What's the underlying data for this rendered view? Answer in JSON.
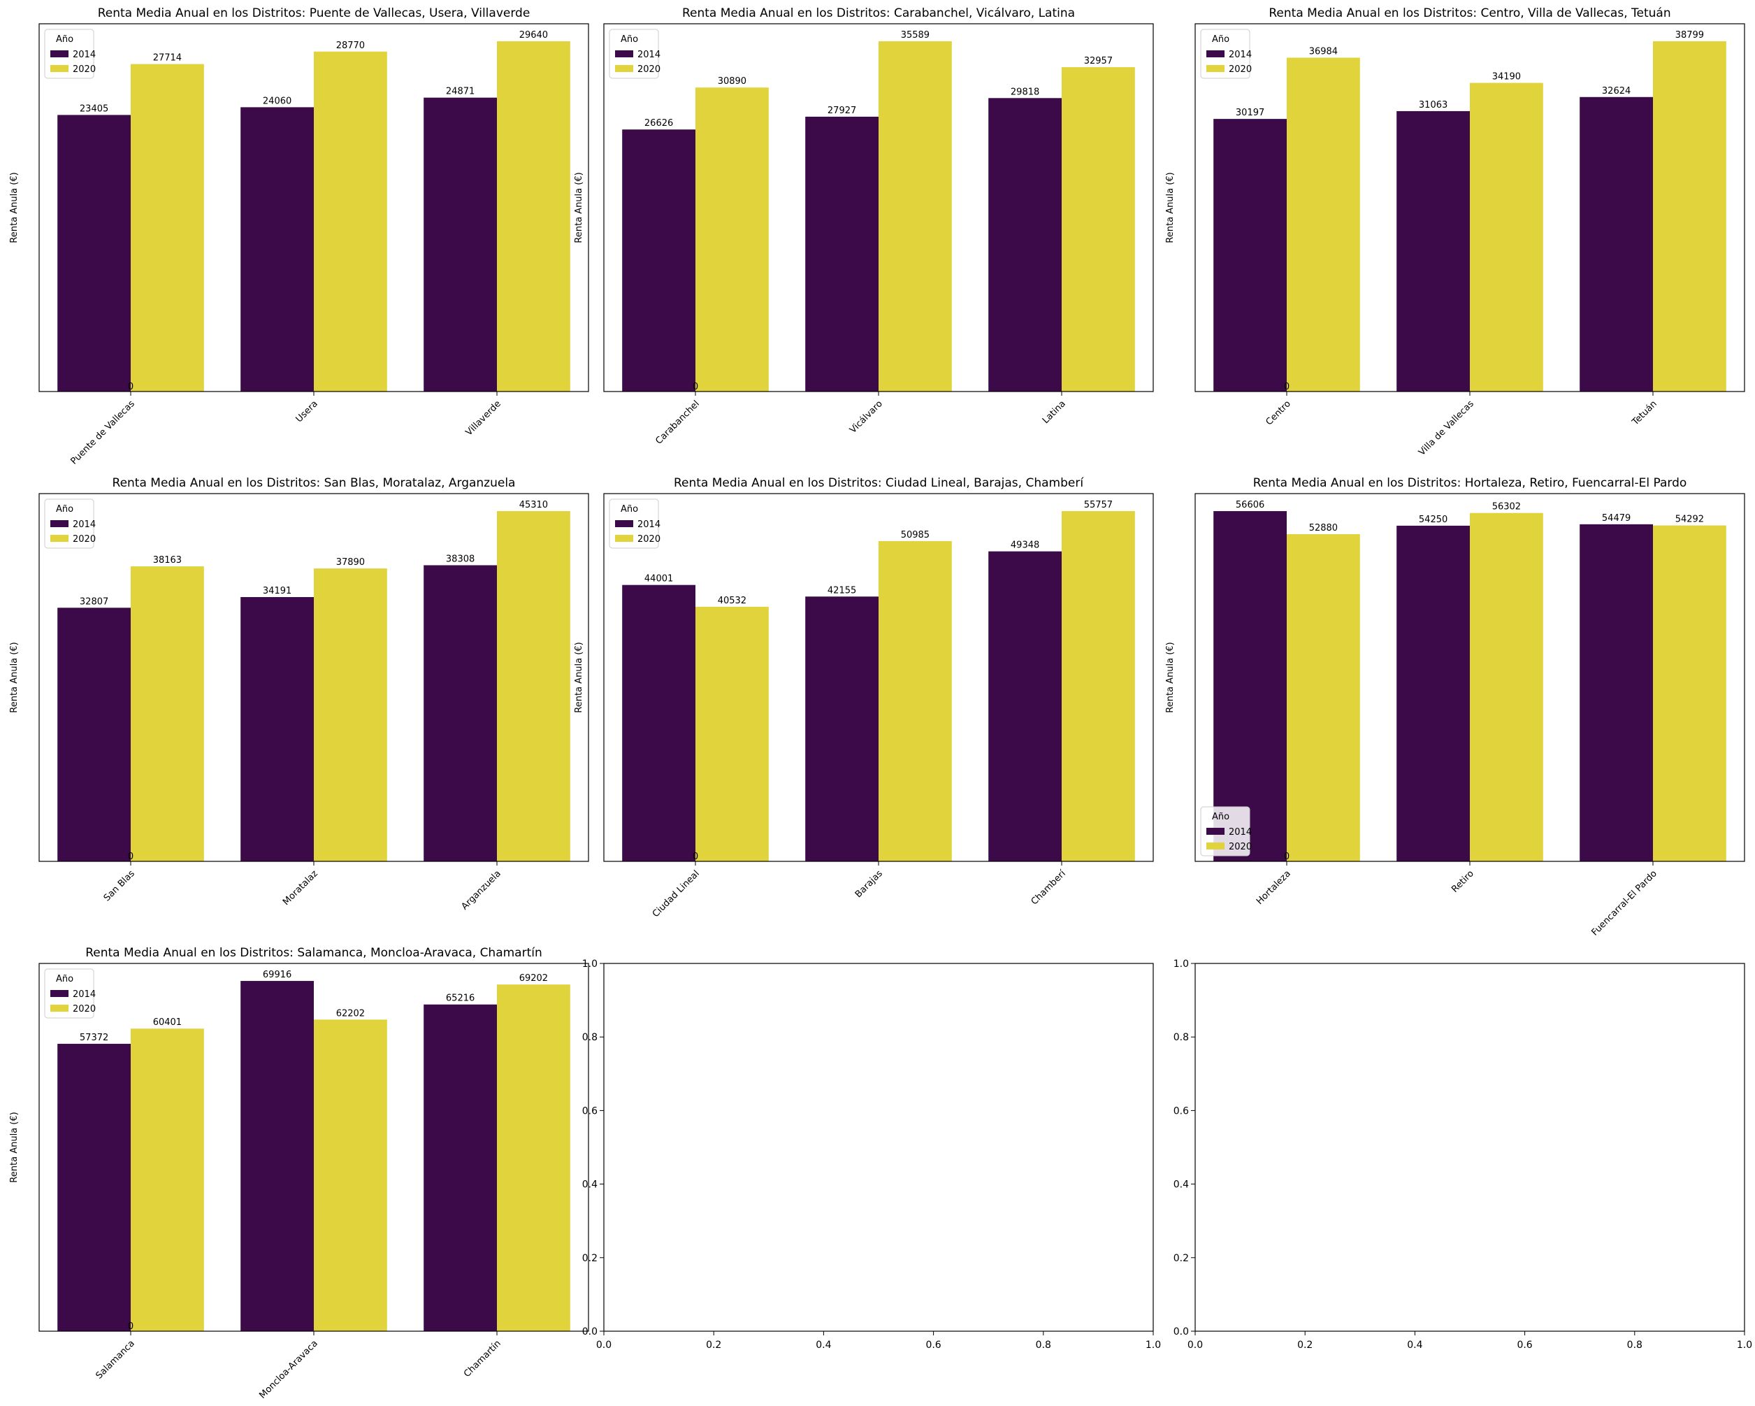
{
  "colors": {
    "y2014": "#3c0a49",
    "y2020": "#e1d33c",
    "axis": "#000000",
    "legendEdge": "#cccccc"
  },
  "chart_data": [
    {
      "type": "bar",
      "title": "Renta Media Anual en los Distritos: Puente de Vallecas, Usera, Villaverde",
      "ylabel": "Renta Anula (€)",
      "legend": {
        "title": "Año",
        "position": "upper-left"
      },
      "categories": [
        "Puente de Vallecas",
        "Usera",
        "Villaverde"
      ],
      "series": [
        {
          "name": "2014",
          "values": [
            23405,
            24060,
            24871
          ],
          "labels": [
            "23405",
            "24060",
            "24871"
          ]
        },
        {
          "name": "2020",
          "values": [
            27714,
            28770,
            29640
          ],
          "labels": [
            "27714",
            "28770",
            "29640"
          ]
        }
      ],
      "zero_label": "0",
      "ylim": [
        0,
        29640
      ]
    },
    {
      "type": "bar",
      "title": "Renta Media Anual en los Distritos: Carabanchel, Vicálvaro, Latina",
      "ylabel": "Renta Anula (€)",
      "legend": {
        "title": "Año",
        "position": "upper-left"
      },
      "categories": [
        "Carabanchel",
        "Vicálvaro",
        "Latina"
      ],
      "series": [
        {
          "name": "2014",
          "values": [
            26626,
            27927,
            29818
          ],
          "labels": [
            "26626",
            "27927",
            "29818"
          ]
        },
        {
          "name": "2020",
          "values": [
            30890,
            35589,
            32957
          ],
          "labels": [
            "30890",
            "35589",
            "32957"
          ]
        }
      ],
      "zero_label": "0",
      "ylim": [
        0,
        35589
      ]
    },
    {
      "type": "bar",
      "title": "Renta Media Anual en los Distritos: Centro, Villa de Vallecas, Tetuán",
      "ylabel": "Renta Anula (€)",
      "legend": {
        "title": "Año",
        "position": "upper-left"
      },
      "categories": [
        "Centro",
        "Villa de Vallecas",
        "Tetuán"
      ],
      "series": [
        {
          "name": "2014",
          "values": [
            30197,
            31063,
            32624
          ],
          "labels": [
            "30197",
            "31063",
            "32624"
          ]
        },
        {
          "name": "2020",
          "values": [
            36984,
            34190,
            38799
          ],
          "labels": [
            "36984",
            "34190",
            "38799"
          ]
        }
      ],
      "zero_label": "0",
      "ylim": [
        0,
        38799
      ]
    },
    {
      "type": "bar",
      "title": "Renta Media Anual en los Distritos: San Blas, Moratalaz, Arganzuela",
      "ylabel": "Renta Anula (€)",
      "legend": {
        "title": "Año",
        "position": "upper-left"
      },
      "categories": [
        "San Blas",
        "Moratalaz",
        "Arganzuela"
      ],
      "series": [
        {
          "name": "2014",
          "values": [
            32807,
            34191,
            38308
          ],
          "labels": [
            "32807",
            "34191",
            "38308"
          ]
        },
        {
          "name": "2020",
          "values": [
            38163,
            37890,
            45310
          ],
          "labels": [
            "38163",
            "37890",
            "45310"
          ]
        }
      ],
      "zero_label": "0",
      "ylim": [
        0,
        45310
      ]
    },
    {
      "type": "bar",
      "title": "Renta Media Anual en los Distritos: Ciudad Lineal, Barajas, Chamberí",
      "ylabel": "Renta Anula (€)",
      "legend": {
        "title": "Año",
        "position": "upper-left"
      },
      "categories": [
        "Ciudad Lineal",
        "Barajas",
        "Chamberí"
      ],
      "series": [
        {
          "name": "2014",
          "values": [
            44001,
            42155,
            49348
          ],
          "labels": [
            "44001",
            "42155",
            "49348"
          ]
        },
        {
          "name": "2020",
          "values": [
            40532,
            50985,
            55757
          ],
          "labels": [
            "40532",
            "50985",
            "55757"
          ]
        }
      ],
      "zero_label": "0",
      "ylim": [
        0,
        55757
      ]
    },
    {
      "type": "bar",
      "title": "Renta Media Anual en los Distritos: Hortaleza, Retiro, Fuencarral-El Pardo",
      "ylabel": "Renta Anula (€)",
      "legend": {
        "title": "Año",
        "position": "lower-left"
      },
      "categories": [
        "Hortaleza",
        "Retiro",
        "Fuencarral-El Pardo"
      ],
      "series": [
        {
          "name": "2014",
          "values": [
            56606,
            54250,
            54479
          ],
          "labels": [
            "56606",
            "54250",
            "54479"
          ]
        },
        {
          "name": "2020",
          "values": [
            52880,
            56302,
            54292
          ],
          "labels": [
            "52880",
            "56302",
            "54292"
          ]
        }
      ],
      "zero_label": "0",
      "ylim": [
        0,
        56606
      ]
    },
    {
      "type": "bar",
      "title": "Renta Media Anual en los Distritos: Salamanca, Moncloa-Aravaca, Chamartín",
      "ylabel": "Renta Anula (€)",
      "legend": {
        "title": "Año",
        "position": "upper-left"
      },
      "categories": [
        "Salamanca",
        "Moncloa-Aravaca",
        "Chamartín"
      ],
      "series": [
        {
          "name": "2014",
          "values": [
            57372,
            69916,
            65216
          ],
          "labels": [
            "57372",
            "69916",
            "65216"
          ]
        },
        {
          "name": "2020",
          "values": [
            60401,
            62202,
            69202
          ],
          "labels": [
            "60401",
            "62202",
            "69202"
          ]
        }
      ],
      "zero_label": "0",
      "ylim": [
        0,
        69916
      ]
    },
    {
      "type": "empty",
      "xlim": [
        0,
        1
      ],
      "ylim": [
        0,
        1
      ],
      "xticks": [
        "0.0",
        "0.2",
        "0.4",
        "0.6",
        "0.8",
        "1.0"
      ],
      "yticks": [
        "0.0",
        "0.2",
        "0.4",
        "0.6",
        "0.8",
        "1.0"
      ]
    },
    {
      "type": "empty",
      "xlim": [
        0,
        1
      ],
      "ylim": [
        0,
        1
      ],
      "xticks": [
        "0.0",
        "0.2",
        "0.4",
        "0.6",
        "0.8",
        "1.0"
      ],
      "yticks": [
        "0.0",
        "0.2",
        "0.4",
        "0.6",
        "0.8",
        "1.0"
      ]
    }
  ]
}
